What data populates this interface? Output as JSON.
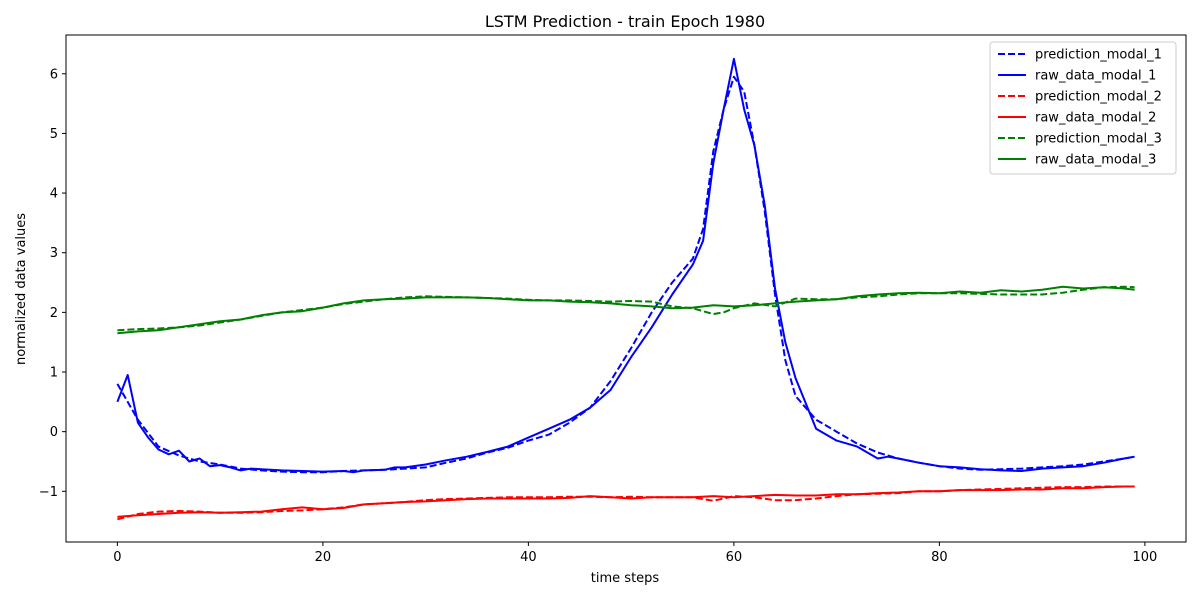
{
  "chart_data": {
    "type": "line",
    "title": "LSTM Prediction - train Epoch 1980",
    "xlabel": "time steps",
    "ylabel": "normalized data values",
    "xlim": [
      -5,
      104
    ],
    "ylim": [
      -1.85,
      6.65
    ],
    "xticks": [
      0,
      20,
      40,
      60,
      80,
      100
    ],
    "xtick_labels": [
      "0",
      "20",
      "40",
      "60",
      "80",
      "100"
    ],
    "yticks": [
      -1,
      0,
      1,
      2,
      3,
      4,
      5,
      6
    ],
    "ytick_labels": [
      "−1",
      "0",
      "1",
      "2",
      "3",
      "4",
      "5",
      "6"
    ],
    "grid": false,
    "legend_position": "top-right",
    "series": [
      {
        "name": "prediction_modal_1",
        "color": "#0000ff",
        "dash": true,
        "x": [
          0,
          2,
          4,
          6,
          8,
          10,
          12,
          14,
          16,
          18,
          20,
          22,
          24,
          26,
          28,
          30,
          32,
          34,
          36,
          38,
          40,
          42,
          44,
          46,
          48,
          50,
          52,
          54,
          56,
          57,
          58,
          59,
          60,
          61,
          62,
          63,
          64,
          65,
          66,
          68,
          70,
          72,
          74,
          76,
          78,
          80,
          82,
          84,
          86,
          88,
          90,
          92,
          94,
          96,
          98,
          99
        ],
        "y": [
          0.8,
          0.2,
          -0.25,
          -0.4,
          -0.5,
          -0.55,
          -0.62,
          -0.65,
          -0.67,
          -0.68,
          -0.68,
          -0.66,
          -0.65,
          -0.64,
          -0.62,
          -0.6,
          -0.52,
          -0.45,
          -0.35,
          -0.27,
          -0.15,
          -0.05,
          0.15,
          0.4,
          0.85,
          1.4,
          2.0,
          2.5,
          2.9,
          3.4,
          4.7,
          5.4,
          5.95,
          5.7,
          4.8,
          3.7,
          2.3,
          1.2,
          0.6,
          0.2,
          0.0,
          -0.2,
          -0.35,
          -0.45,
          -0.52,
          -0.58,
          -0.62,
          -0.64,
          -0.63,
          -0.62,
          -0.6,
          -0.58,
          -0.55,
          -0.5,
          -0.45,
          -0.42
        ]
      },
      {
        "name": "raw_data_modal_1",
        "color": "#0000ff",
        "dash": false,
        "x": [
          0,
          1,
          2,
          3,
          4,
          5,
          6,
          7,
          8,
          9,
          10,
          11,
          12,
          13,
          14,
          16,
          18,
          20,
          22,
          23,
          24,
          26,
          27,
          28,
          30,
          32,
          34,
          36,
          38,
          40,
          42,
          44,
          46,
          48,
          50,
          52,
          54,
          56,
          57,
          58,
          59,
          60,
          61,
          62,
          63,
          64,
          65,
          66,
          68,
          70,
          72,
          74,
          75,
          76,
          78,
          80,
          82,
          84,
          86,
          88,
          90,
          92,
          94,
          96,
          98,
          99
        ],
        "y": [
          0.5,
          0.95,
          0.15,
          -0.1,
          -0.3,
          -0.38,
          -0.32,
          -0.5,
          -0.45,
          -0.58,
          -0.56,
          -0.6,
          -0.65,
          -0.62,
          -0.63,
          -0.65,
          -0.66,
          -0.67,
          -0.66,
          -0.68,
          -0.65,
          -0.64,
          -0.6,
          -0.6,
          -0.55,
          -0.48,
          -0.42,
          -0.34,
          -0.25,
          -0.1,
          0.05,
          0.2,
          0.4,
          0.7,
          1.25,
          1.75,
          2.3,
          2.8,
          3.2,
          4.5,
          5.4,
          6.25,
          5.4,
          4.8,
          3.8,
          2.4,
          1.5,
          0.9,
          0.05,
          -0.15,
          -0.25,
          -0.45,
          -0.42,
          -0.45,
          -0.52,
          -0.58,
          -0.6,
          -0.63,
          -0.65,
          -0.66,
          -0.62,
          -0.6,
          -0.58,
          -0.52,
          -0.45,
          -0.42
        ]
      },
      {
        "name": "prediction_modal_2",
        "color": "#ff0000",
        "dash": true,
        "x": [
          0,
          2,
          4,
          6,
          8,
          10,
          12,
          14,
          16,
          18,
          20,
          22,
          24,
          26,
          28,
          30,
          32,
          34,
          36,
          38,
          40,
          42,
          44,
          46,
          48,
          50,
          52,
          54,
          56,
          57,
          58,
          59,
          60,
          62,
          64,
          66,
          68,
          70,
          72,
          74,
          76,
          78,
          80,
          82,
          84,
          86,
          88,
          90,
          92,
          94,
          96,
          98,
          99
        ],
        "y": [
          -1.47,
          -1.38,
          -1.34,
          -1.33,
          -1.34,
          -1.36,
          -1.36,
          -1.35,
          -1.33,
          -1.32,
          -1.3,
          -1.27,
          -1.22,
          -1.2,
          -1.18,
          -1.15,
          -1.13,
          -1.12,
          -1.11,
          -1.1,
          -1.1,
          -1.1,
          -1.09,
          -1.09,
          -1.1,
          -1.09,
          -1.1,
          -1.1,
          -1.1,
          -1.13,
          -1.16,
          -1.12,
          -1.08,
          -1.1,
          -1.15,
          -1.15,
          -1.12,
          -1.08,
          -1.05,
          -1.04,
          -1.03,
          -1.0,
          -1.0,
          -0.98,
          -0.97,
          -0.96,
          -0.95,
          -0.94,
          -0.93,
          -0.93,
          -0.92,
          -0.92,
          -0.92
        ]
      },
      {
        "name": "raw_data_modal_2",
        "color": "#ff0000",
        "dash": false,
        "x": [
          0,
          2,
          4,
          6,
          8,
          10,
          12,
          14,
          16,
          18,
          20,
          22,
          24,
          26,
          28,
          30,
          32,
          34,
          36,
          38,
          40,
          42,
          44,
          46,
          48,
          50,
          52,
          54,
          56,
          58,
          60,
          62,
          64,
          66,
          68,
          70,
          72,
          74,
          76,
          78,
          80,
          82,
          84,
          86,
          88,
          90,
          92,
          94,
          96,
          98,
          99
        ],
        "y": [
          -1.43,
          -1.4,
          -1.38,
          -1.36,
          -1.35,
          -1.36,
          -1.35,
          -1.34,
          -1.3,
          -1.27,
          -1.3,
          -1.28,
          -1.22,
          -1.2,
          -1.18,
          -1.17,
          -1.15,
          -1.13,
          -1.12,
          -1.12,
          -1.12,
          -1.12,
          -1.11,
          -1.08,
          -1.1,
          -1.12,
          -1.1,
          -1.1,
          -1.1,
          -1.08,
          -1.1,
          -1.08,
          -1.06,
          -1.07,
          -1.07,
          -1.05,
          -1.05,
          -1.03,
          -1.02,
          -1.0,
          -1.0,
          -0.98,
          -0.98,
          -0.98,
          -0.97,
          -0.97,
          -0.95,
          -0.95,
          -0.93,
          -0.92,
          -0.92
        ]
      },
      {
        "name": "prediction_modal_3",
        "color": "#008000",
        "dash": true,
        "x": [
          0,
          2,
          4,
          6,
          8,
          10,
          12,
          14,
          16,
          18,
          20,
          22,
          24,
          26,
          28,
          30,
          32,
          34,
          36,
          38,
          40,
          42,
          44,
          46,
          48,
          50,
          52,
          54,
          56,
          57,
          58,
          59,
          60,
          62,
          64,
          66,
          68,
          70,
          72,
          74,
          76,
          78,
          80,
          82,
          84,
          86,
          88,
          90,
          92,
          94,
          96,
          98,
          99
        ],
        "y": [
          1.7,
          1.72,
          1.73,
          1.75,
          1.78,
          1.83,
          1.88,
          1.94,
          2.0,
          2.04,
          2.08,
          2.14,
          2.18,
          2.22,
          2.25,
          2.27,
          2.26,
          2.25,
          2.24,
          2.23,
          2.21,
          2.2,
          2.2,
          2.19,
          2.18,
          2.19,
          2.18,
          2.1,
          2.07,
          2.02,
          1.97,
          2.0,
          2.07,
          2.15,
          2.1,
          2.23,
          2.22,
          2.22,
          2.25,
          2.27,
          2.3,
          2.32,
          2.32,
          2.32,
          2.31,
          2.3,
          2.3,
          2.3,
          2.33,
          2.38,
          2.42,
          2.43,
          2.42
        ]
      },
      {
        "name": "raw_data_modal_3",
        "color": "#008000",
        "dash": false,
        "x": [
          0,
          2,
          4,
          6,
          8,
          10,
          12,
          14,
          16,
          18,
          20,
          22,
          24,
          26,
          28,
          30,
          32,
          34,
          36,
          38,
          40,
          42,
          44,
          46,
          48,
          50,
          52,
          54,
          56,
          58,
          60,
          62,
          64,
          66,
          68,
          70,
          72,
          74,
          76,
          78,
          80,
          82,
          84,
          86,
          88,
          90,
          92,
          94,
          96,
          98,
          99
        ],
        "y": [
          1.65,
          1.68,
          1.7,
          1.75,
          1.8,
          1.85,
          1.88,
          1.95,
          2.0,
          2.02,
          2.08,
          2.15,
          2.2,
          2.22,
          2.23,
          2.25,
          2.25,
          2.25,
          2.24,
          2.22,
          2.2,
          2.2,
          2.18,
          2.17,
          2.15,
          2.12,
          2.1,
          2.07,
          2.08,
          2.12,
          2.1,
          2.12,
          2.15,
          2.18,
          2.2,
          2.22,
          2.27,
          2.3,
          2.32,
          2.33,
          2.32,
          2.35,
          2.33,
          2.37,
          2.35,
          2.38,
          2.43,
          2.4,
          2.42,
          2.4,
          2.38
        ]
      }
    ]
  }
}
